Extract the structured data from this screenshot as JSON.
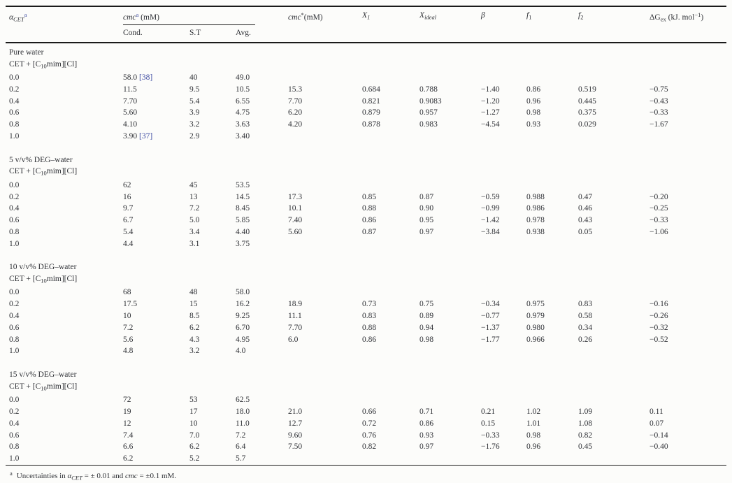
{
  "page": {
    "background": "#fcfcfa",
    "text_color": "#2f3136",
    "rule_color": "#1a1a1a",
    "citation_color": "#3d4aa1"
  },
  "table": {
    "header": {
      "alpha": {
        "symbol": "α",
        "sub": "CET",
        "sup": "a"
      },
      "cmc": {
        "name": "cmc",
        "sup": "a",
        "unit": " (mM)"
      },
      "cond": "Cond.",
      "st": "S.T",
      "avg": "Avg.",
      "cmc_star": {
        "name": "cmc",
        "sup": "*",
        "unit": "(mM)"
      },
      "x1": {
        "base": "X",
        "sub": "1"
      },
      "x_ideal": {
        "base": "X",
        "sub": "ideal"
      },
      "beta": "β",
      "f1": {
        "base": "f",
        "sub": "1"
      },
      "f2": {
        "base": "f",
        "sub": "2"
      },
      "dg": {
        "base": "ΔG",
        "sub": "ex",
        "unit_pre": " (kJ. mol",
        "sup": "−1",
        "unit_post": ")"
      }
    },
    "subtitle": {
      "pre": "CET + [C",
      "sub": "10",
      "post": "mim][Cl]"
    },
    "sections": [
      {
        "title": "Pure water",
        "rows": [
          {
            "alpha": "0.0",
            "cond": "58.0",
            "cond_ref": "[38]",
            "st": "40",
            "avg": "49.0",
            "cmc_star": "",
            "x1": "",
            "x_ideal": "",
            "beta": "",
            "f1": "",
            "f2": "",
            "dg": ""
          },
          {
            "alpha": "0.2",
            "cond": "11.5",
            "st": "9.5",
            "avg": "10.5",
            "cmc_star": "15.3",
            "x1": "0.684",
            "x_ideal": "0.788",
            "beta": "−1.40",
            "f1": "0.86",
            "f2": "0.519",
            "dg": "−0.75"
          },
          {
            "alpha": "0.4",
            "cond": "7.70",
            "st": "5.4",
            "avg": "6.55",
            "cmc_star": "7.70",
            "x1": "0.821",
            "x_ideal": "0.9083",
            "beta": "−1.20",
            "f1": "0.96",
            "f2": "0.445",
            "dg": "−0.43"
          },
          {
            "alpha": "0.6",
            "cond": "5.60",
            "st": "3.9",
            "avg": "4.75",
            "cmc_star": "6.20",
            "x1": "0.879",
            "x_ideal": "0.957",
            "beta": "−1.27",
            "f1": "0.98",
            "f2": "0.375",
            "dg": "−0.33"
          },
          {
            "alpha": "0.8",
            "cond": "4.10",
            "st": "3.2",
            "avg": "3.63",
            "cmc_star": "4.20",
            "x1": "0.878",
            "x_ideal": "0.983",
            "beta": "−4.54",
            "f1": "0.93",
            "f2": "0.029",
            "dg": "−1.67"
          },
          {
            "alpha": "1.0",
            "cond": "3.90",
            "cond_ref": "[37]",
            "st": "2.9",
            "avg": "3.40",
            "cmc_star": "",
            "x1": "",
            "x_ideal": "",
            "beta": "",
            "f1": "",
            "f2": "",
            "dg": ""
          }
        ]
      },
      {
        "title": "5 v/v% DEG–water",
        "rows": [
          {
            "alpha": "0.0",
            "cond": "62",
            "st": "45",
            "avg": "53.5",
            "cmc_star": "",
            "x1": "",
            "x_ideal": "",
            "beta": "",
            "f1": "",
            "f2": "",
            "dg": ""
          },
          {
            "alpha": "0.2",
            "cond": "16",
            "st": "13",
            "avg": "14.5",
            "cmc_star": "17.3",
            "x1": "0.85",
            "x_ideal": "0.87",
            "beta": "−0.59",
            "f1": "0.988",
            "f2": "0.47",
            "dg": "−0.20"
          },
          {
            "alpha": "0.4",
            "cond": "9.7",
            "st": "7.2",
            "avg": "8.45",
            "cmc_star": "10.1",
            "x1": "0.88",
            "x_ideal": "0.90",
            "beta": "−0.99",
            "f1": "0.986",
            "f2": "0.46",
            "dg": "−0.25"
          },
          {
            "alpha": "0.6",
            "cond": "6.7",
            "st": "5.0",
            "avg": "5.85",
            "cmc_star": "7.40",
            "x1": "0.86",
            "x_ideal": "0.95",
            "beta": "−1.42",
            "f1": "0.978",
            "f2": "0.43",
            "dg": "−0.33"
          },
          {
            "alpha": "0.8",
            "cond": "5.4",
            "st": "3.4",
            "avg": "4.40",
            "cmc_star": "5.60",
            "x1": "0.87",
            "x_ideal": "0.97",
            "beta": "−3.84",
            "f1": "0.938",
            "f2": "0.05",
            "dg": "−1.06"
          },
          {
            "alpha": "1.0",
            "cond": "4.4",
            "st": "3.1",
            "avg": "3.75",
            "cmc_star": "",
            "x1": "",
            "x_ideal": "",
            "beta": "",
            "f1": "",
            "f2": "",
            "dg": ""
          }
        ]
      },
      {
        "title": "10 v/v% DEG–water",
        "rows": [
          {
            "alpha": "0.0",
            "cond": "68",
            "st": "48",
            "avg": "58.0",
            "cmc_star": "",
            "x1": "",
            "x_ideal": "",
            "beta": "",
            "f1": "",
            "f2": "",
            "dg": ""
          },
          {
            "alpha": "0.2",
            "cond": "17.5",
            "st": "15",
            "avg": "16.2",
            "cmc_star": "18.9",
            "x1": "0.73",
            "x_ideal": "0.75",
            "beta": "−0.34",
            "f1": "0.975",
            "f2": "0.83",
            "dg": "−0.16"
          },
          {
            "alpha": "0.4",
            "cond": "10",
            "st": "8.5",
            "avg": "9.25",
            "cmc_star": "11.1",
            "x1": "0.83",
            "x_ideal": "0.89",
            "beta": "−0.77",
            "f1": "0.979",
            "f2": "0.58",
            "dg": "−0.26"
          },
          {
            "alpha": "0.6",
            "cond": "7.2",
            "st": "6.2",
            "avg": "6.70",
            "cmc_star": "7.70",
            "x1": "0.88",
            "x_ideal": "0.94",
            "beta": "−1.37",
            "f1": "0.980",
            "f2": "0.34",
            "dg": "−0.32"
          },
          {
            "alpha": "0.8",
            "cond": "5.6",
            "st": "4.3",
            "avg": "4.95",
            "cmc_star": "6.0",
            "x1": "0.86",
            "x_ideal": "0.98",
            "beta": "−1.77",
            "f1": "0.966",
            "f2": "0.26",
            "dg": "−0.52"
          },
          {
            "alpha": "1.0",
            "cond": "4.8",
            "st": "3.2",
            "avg": "4.0",
            "cmc_star": "",
            "x1": "",
            "x_ideal": "",
            "beta": "",
            "f1": "",
            "f2": "",
            "dg": ""
          }
        ]
      },
      {
        "title": "15 v/v% DEG–water",
        "rows": [
          {
            "alpha": "0.0",
            "cond": "72",
            "st": "53",
            "avg": "62.5",
            "cmc_star": "",
            "x1": "",
            "x_ideal": "",
            "beta": "",
            "f1": "",
            "f2": "",
            "dg": ""
          },
          {
            "alpha": "0.2",
            "cond": "19",
            "st": "17",
            "avg": "18.0",
            "cmc_star": "21.0",
            "x1": "0.66",
            "x_ideal": "0.71",
            "beta": "0.21",
            "f1": "1.02",
            "f2": "1.09",
            "dg": "0.11"
          },
          {
            "alpha": "0.4",
            "cond": "12",
            "st": "10",
            "avg": "11.0",
            "cmc_star": "12.7",
            "x1": "0.72",
            "x_ideal": "0.86",
            "beta": "0.15",
            "f1": "1.01",
            "f2": "1.08",
            "dg": "0.07"
          },
          {
            "alpha": "0.6",
            "cond": "7.4",
            "st": "7.0",
            "avg": "7.2",
            "cmc_star": "9.60",
            "x1": "0.76",
            "x_ideal": "0.93",
            "beta": "−0.33",
            "f1": "0.98",
            "f2": "0.82",
            "dg": "−0.14"
          },
          {
            "alpha": "0.8",
            "cond": "6.6",
            "st": "6.2",
            "avg": "6.4",
            "cmc_star": "7.50",
            "x1": "0.82",
            "x_ideal": "0.97",
            "beta": "−1.76",
            "f1": "0.96",
            "f2": "0.45",
            "dg": "−0.40"
          },
          {
            "alpha": "1.0",
            "cond": "6.2",
            "st": "5.2",
            "avg": "5.7",
            "cmc_star": "",
            "x1": "",
            "x_ideal": "",
            "beta": "",
            "f1": "",
            "f2": "",
            "dg": ""
          }
        ]
      }
    ],
    "footnote": {
      "marker": "a",
      "part1": "Uncertainties in ",
      "alpha": "α",
      "alpha_sub": "CET",
      "part2": " = ± 0.01 and ",
      "cmc": "cmc",
      "part3": " = ±0.1 mM."
    }
  }
}
